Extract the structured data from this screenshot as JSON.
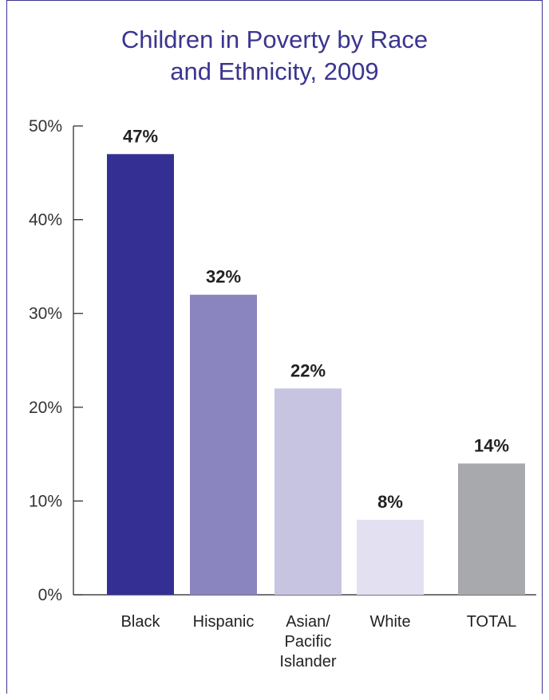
{
  "chart_data": {
    "type": "bar",
    "title_lines": [
      "Children in Poverty by Race",
      "and Ethnicity, 2009"
    ],
    "categories": [
      {
        "label_lines": [
          "Black"
        ],
        "value": 47,
        "value_label": "47%",
        "color": "#343093"
      },
      {
        "label_lines": [
          "Hispanic"
        ],
        "value": 32,
        "value_label": "32%",
        "color": "#8a84bf"
      },
      {
        "label_lines": [
          "Asian/",
          "Pacific",
          "Islander"
        ],
        "value": 22,
        "value_label": "22%",
        "color": "#c7c4e2"
      },
      {
        "label_lines": [
          "White"
        ],
        "value": 8,
        "value_label": "8%",
        "color": "#e3e1f1"
      },
      {
        "label_lines": [
          "TOTAL"
        ],
        "value": 14,
        "value_label": "14%",
        "color": "#a7a9ac"
      }
    ],
    "ylim": [
      0,
      50
    ],
    "yticks": [
      0,
      10,
      20,
      30,
      40,
      50
    ],
    "ytick_labels": [
      "0%",
      "10%",
      "20%",
      "30%",
      "40%",
      "50%"
    ],
    "xlabel": "",
    "ylabel": "",
    "grid": false,
    "legend": "none"
  }
}
